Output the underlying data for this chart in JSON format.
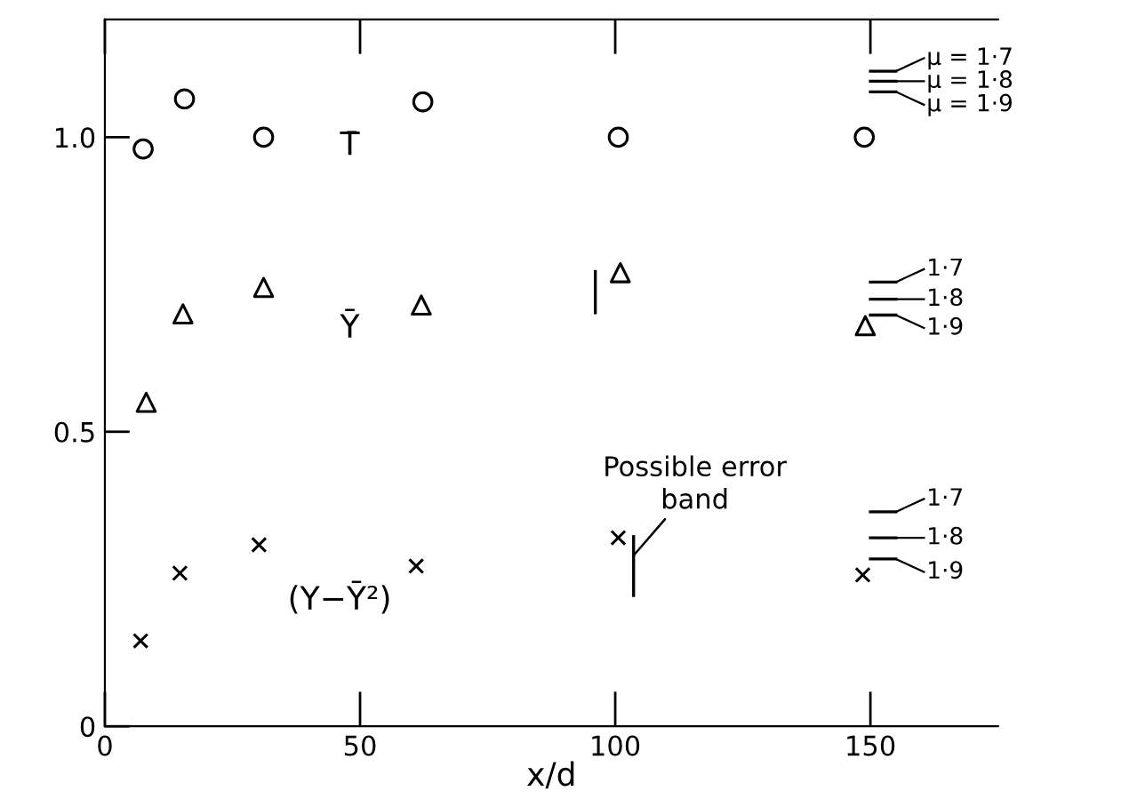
{
  "chart_data": {
    "type": "scatter",
    "xlabel": "x/d",
    "xlim": [
      0,
      175
    ],
    "ylim": [
      0,
      1.2
    ],
    "xticks": [
      0,
      50,
      100,
      150
    ],
    "yticks": [
      0,
      0.5,
      {
        "value": 1.0,
        "label": "1.0"
      }
    ],
    "grid": false,
    "legend": "right",
    "series": [
      {
        "name": "T̄",
        "color": "#000000",
        "marker": "circle",
        "x": [
          7.5,
          15.6,
          31.1,
          62.3,
          100.6,
          148.8
        ],
        "values": [
          0.98,
          1.065,
          1.0,
          1.06,
          1.0,
          1.0
        ]
      },
      {
        "name": "Ȳ",
        "color": "#000000",
        "marker": "triangle",
        "x": [
          8.1,
          15.3,
          31.1,
          62.0,
          101.0,
          149.0
        ],
        "values": [
          0.55,
          0.7,
          0.745,
          0.715,
          0.77,
          0.68
        ]
      },
      {
        "name": "(Y−Ȳ²)",
        "color": "#000000",
        "marker": "cross",
        "x": [
          7.0,
          14.7,
          30.2,
          61.0,
          100.6,
          148.5
        ],
        "values": [
          0.145,
          0.26,
          0.308,
          0.272,
          0.32,
          0.257
        ]
      },
      {
        "type": "line",
        "marker": "none",
        "color": "#000000",
        "x": [
          96.1,
          96.1
        ],
        "values": [
          0.702,
          0.772
        ]
      },
      {
        "type": "line",
        "marker": "none",
        "color": "#000000",
        "x": [
          103.6,
          103.6
        ],
        "values": [
          0.222,
          0.322
        ]
      },
      {
        "type": "line",
        "name": "μ = 1·7",
        "color": "#000000",
        "x": [
          150,
          155
        ],
        "values": [
          1.112,
          1.112
        ]
      },
      {
        "type": "line",
        "name": "μ = 1·8",
        "color": "#000000",
        "x": [
          150,
          155
        ],
        "values": [
          1.095,
          1.095
        ]
      },
      {
        "type": "line",
        "name": "μ = 1·9",
        "color": "#000000",
        "x": [
          150,
          155
        ],
        "values": [
          1.077,
          1.077
        ]
      },
      {
        "type": "line",
        "name": "1·7",
        "color": "#000000",
        "x": [
          150,
          155
        ],
        "values": [
          0.754,
          0.754
        ]
      },
      {
        "type": "line",
        "name": "1·8",
        "color": "#000000",
        "x": [
          150,
          155
        ],
        "values": [
          0.725,
          0.725
        ]
      },
      {
        "type": "line",
        "name": "1·9",
        "color": "#000000",
        "x": [
          150,
          155
        ],
        "values": [
          0.698,
          0.698
        ]
      },
      {
        "type": "line",
        "name": "1·7",
        "color": "#000000",
        "x": [
          150,
          155
        ],
        "values": [
          0.364,
          0.364
        ]
      },
      {
        "type": "line",
        "name": "1·8",
        "color": "#000000",
        "x": [
          150,
          155
        ],
        "values": [
          0.32,
          0.32
        ]
      },
      {
        "type": "line",
        "name": "1·9",
        "color": "#000000",
        "x": [
          150,
          155
        ],
        "values": [
          0.284,
          0.284
        ]
      }
    ],
    "annotations": [
      {
        "text": "Possible error\nband",
        "x": 103.6,
        "y": 0.29
      }
    ]
  }
}
